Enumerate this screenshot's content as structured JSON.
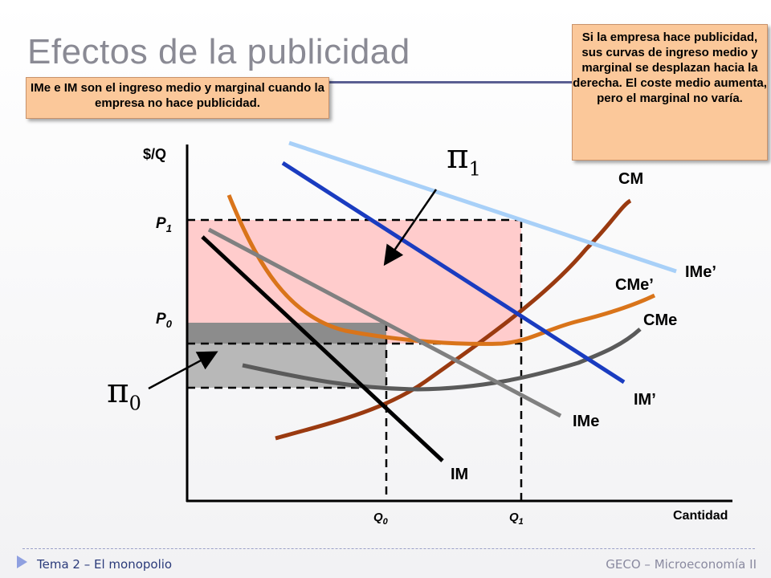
{
  "slide": {
    "title": "Efectos de la publicidad",
    "note_left": "IMe e IM son el ingreso medio y marginal cuando la empresa no hace publicidad.",
    "note_right": "Si la empresa hace publicidad, sus curvas de ingreso medio y marginal se desplazan hacia la derecha. El coste medio aumenta, pero el marginal no varía."
  },
  "axes": {
    "y_label": "$/Q",
    "x_label": "Cantidad",
    "p1": "P",
    "p1_sub": "1",
    "p0": "P",
    "p0_sub": "0",
    "q0": "Q",
    "q0_sub": "0",
    "q1": "Q",
    "q1_sub": "1"
  },
  "curves": {
    "cm": "CM",
    "ime_prime": "IMe’",
    "cme_prime": "CMe’",
    "cme": "CMe",
    "im_prime": "IM’",
    "ime": "IMe",
    "im": "IM"
  },
  "profits": {
    "pi1_symbol": "π",
    "pi1_sub": "1",
    "pi0_symbol": "π",
    "pi0_sub": "0"
  },
  "footer": {
    "left": "Tema 2 – El monopolio",
    "right": "GECO – Microeconomía II"
  },
  "colors": {
    "profit1_fill": "#ffcccc",
    "profit0_fill": "#b8b8b8",
    "cm": "#9a3a10",
    "cme_prime": "#d9741a",
    "cme": "#5a5a5a",
    "ime_prime": "#a8d0f8",
    "im_prime": "#1a3cc0",
    "ime": "#808080",
    "im": "#000000",
    "note_bg": "#fbc89a"
  }
}
